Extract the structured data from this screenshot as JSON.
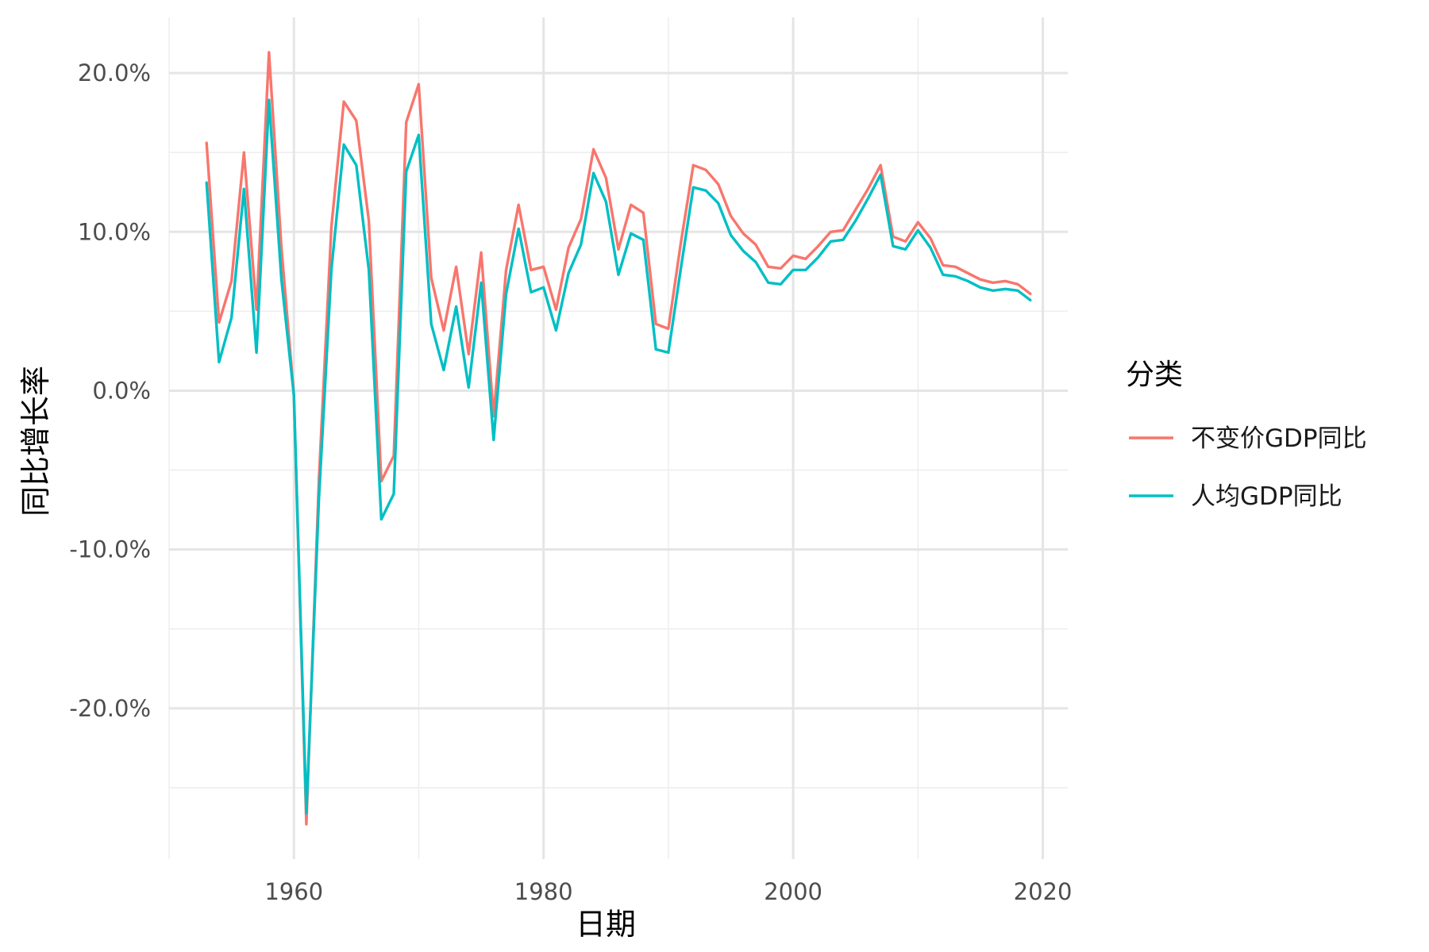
{
  "chart_data": {
    "type": "line",
    "title": "",
    "xlabel": "日期",
    "ylabel": "同比增长率",
    "xlim": [
      1950,
      2022
    ],
    "ylim": [
      -29.5,
      23.5
    ],
    "x_ticks": [
      1960,
      1980,
      2000,
      2020
    ],
    "x_minor_ticks": [
      1950,
      1970,
      1990,
      2010
    ],
    "y_ticks": [
      20,
      10,
      0,
      -10,
      -20
    ],
    "y_tick_labels": [
      "20.0%",
      "10.0%",
      "0.0%",
      "-10.0%",
      "-20.0%"
    ],
    "y_minor_ticks": [
      15,
      5,
      -5,
      -15,
      -25
    ],
    "grid": true,
    "legend": {
      "title": "分类",
      "position": "right"
    },
    "x": [
      1953,
      1954,
      1955,
      1956,
      1957,
      1958,
      1959,
      1960,
      1961,
      1962,
      1963,
      1964,
      1965,
      1966,
      1967,
      1968,
      1969,
      1970,
      1971,
      1972,
      1973,
      1974,
      1975,
      1976,
      1977,
      1978,
      1979,
      1980,
      1981,
      1982,
      1983,
      1984,
      1985,
      1986,
      1987,
      1988,
      1989,
      1990,
      1991,
      1992,
      1993,
      1994,
      1995,
      1996,
      1997,
      1998,
      1999,
      2000,
      2001,
      2002,
      2003,
      2004,
      2005,
      2006,
      2007,
      2008,
      2009,
      2010,
      2011,
      2012,
      2013,
      2014,
      2015,
      2016,
      2017,
      2018,
      2019
    ],
    "series": [
      {
        "name": "不变价GDP同比",
        "color": "#F8766D",
        "values": [
          15.6,
          4.3,
          6.9,
          15.0,
          5.1,
          21.3,
          9.0,
          -0.3,
          -27.3,
          -5.6,
          10.3,
          18.2,
          17.0,
          10.7,
          -5.7,
          -4.1,
          16.9,
          19.3,
          7.1,
          3.8,
          7.8,
          2.3,
          8.7,
          -1.6,
          7.6,
          11.7,
          7.6,
          7.8,
          5.1,
          9.0,
          10.8,
          15.2,
          13.4,
          8.9,
          11.7,
          11.2,
          4.2,
          3.9,
          9.3,
          14.2,
          13.9,
          13.0,
          11.0,
          9.9,
          9.2,
          7.8,
          7.7,
          8.5,
          8.3,
          9.1,
          10.0,
          10.1,
          11.4,
          12.7,
          14.2,
          9.7,
          9.4,
          10.6,
          9.6,
          7.9,
          7.8,
          7.4,
          7.0,
          6.8,
          6.9,
          6.7,
          6.1
        ]
      },
      {
        "name": "人均GDP同比",
        "color": "#00BFC4",
        "values": [
          13.1,
          1.8,
          4.6,
          12.7,
          2.4,
          18.3,
          7.0,
          -0.3,
          -26.6,
          -6.8,
          7.6,
          15.5,
          14.2,
          7.6,
          -8.1,
          -6.5,
          13.8,
          16.1,
          4.2,
          1.3,
          5.3,
          0.2,
          6.8,
          -3.1,
          6.1,
          10.2,
          6.2,
          6.5,
          3.8,
          7.4,
          9.2,
          13.7,
          11.9,
          7.3,
          9.9,
          9.5,
          2.6,
          2.4,
          7.7,
          12.8,
          12.6,
          11.8,
          9.8,
          8.8,
          8.1,
          6.8,
          6.7,
          7.6,
          7.6,
          8.4,
          9.4,
          9.5,
          10.7,
          12.1,
          13.6,
          9.1,
          8.9,
          10.1,
          9.0,
          7.3,
          7.2,
          6.9,
          6.5,
          6.3,
          6.4,
          6.3,
          5.7
        ]
      }
    ]
  }
}
